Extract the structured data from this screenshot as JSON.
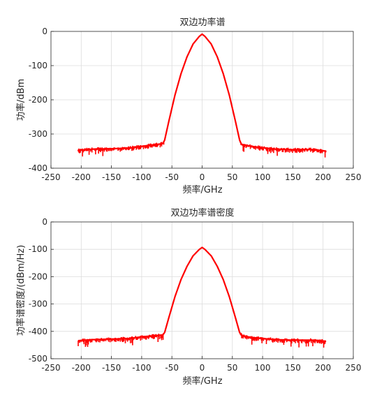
{
  "chart_data": [
    {
      "type": "line",
      "title": "双边功率谱",
      "xlabel": "频率/GHz",
      "ylabel": "功率/dBm",
      "xlim": [
        -250,
        250
      ],
      "ylim": [
        -400,
        0
      ],
      "xticks": [
        -250,
        -200,
        -150,
        -100,
        -50,
        0,
        50,
        100,
        150,
        200,
        250
      ],
      "yticks": [
        -400,
        -300,
        -200,
        -100,
        0
      ],
      "grid": true,
      "series_color": "#ff0000",
      "noise_floor": -345,
      "series": [
        {
          "x": [
            -205,
            -180,
            -150,
            -120,
            -100,
            -80,
            -65,
            -62,
            -55,
            -45,
            -35,
            -25,
            -15,
            -5,
            0,
            5,
            15,
            25,
            35,
            45,
            55,
            62,
            65,
            80,
            100,
            120,
            150,
            180,
            205
          ],
          "y": [
            -348,
            -344,
            -343,
            -341,
            -336,
            -332,
            -328,
            -318,
            -262,
            -187,
            -124,
            -74,
            -37,
            -15,
            -8,
            -15,
            -37,
            -74,
            -124,
            -187,
            -262,
            -318,
            -330,
            -336,
            -340,
            -344,
            -346,
            -345,
            -350
          ]
        }
      ]
    },
    {
      "type": "line",
      "title": "双边功率谱密度",
      "xlabel": "频率/GHz",
      "ylabel": "功率谱密度/(dBm/Hz)",
      "xlim": [
        -250,
        250
      ],
      "ylim": [
        -500,
        0
      ],
      "xticks": [
        -250,
        -200,
        -150,
        -100,
        -50,
        0,
        50,
        100,
        150,
        200,
        250
      ],
      "yticks": [
        -500,
        -400,
        -300,
        -200,
        -100,
        0
      ],
      "grid": true,
      "series_color": "#ff0000",
      "noise_floor": -432,
      "series": [
        {
          "x": [
            -205,
            -180,
            -150,
            -120,
            -100,
            -80,
            -65,
            -62,
            -55,
            -45,
            -35,
            -25,
            -15,
            -5,
            0,
            5,
            15,
            25,
            35,
            45,
            55,
            62,
            65,
            80,
            100,
            120,
            150,
            180,
            205
          ],
          "y": [
            -434,
            -430,
            -428,
            -426,
            -420,
            -416,
            -413,
            -404,
            -349,
            -274,
            -211,
            -162,
            -124,
            -101,
            -93,
            -101,
            -124,
            -162,
            -211,
            -274,
            -349,
            -404,
            -414,
            -422,
            -426,
            -430,
            -432,
            -432,
            -436
          ]
        }
      ]
    }
  ]
}
